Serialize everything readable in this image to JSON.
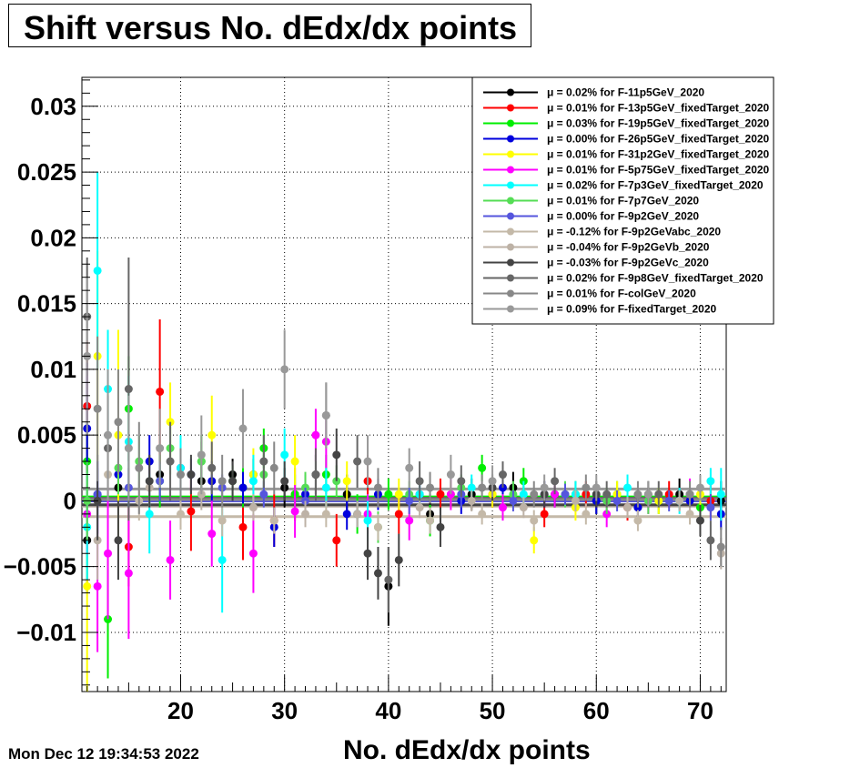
{
  "header": {
    "title": "Shift versus No. dEdx/dx points"
  },
  "footer": {
    "timestamp": "Mon Dec 12 19:34:53 2022"
  },
  "chart_data": {
    "type": "scatter",
    "title": "Shift versus No. dEdx/dx points",
    "xlabel": "No. dEdx/dx points",
    "ylabel": "",
    "xlim": [
      10.5,
      72.5
    ],
    "ylim": [
      -0.0145,
      0.0322
    ],
    "xticks": [
      20,
      30,
      40,
      50,
      60,
      70
    ],
    "xtick_labels": [
      "20",
      "30",
      "40",
      "50",
      "60",
      "70"
    ],
    "yticks": [
      -0.01,
      -0.005,
      0,
      0.005,
      0.01,
      0.015,
      0.02,
      0.025,
      0.03
    ],
    "ytick_labels": [
      "−0.01",
      "−0.005",
      "0",
      "0.005",
      "0.01",
      "0.015",
      "0.02",
      "0.025",
      "0.03"
    ],
    "grid": true,
    "legend_position": "top-right",
    "legend_prefix": "μ =",
    "series": [
      {
        "name": "0.02% for F-11p5GeV_2020",
        "color": "#000000",
        "mean": 0.0002,
        "x": [
          11,
          14,
          18,
          22,
          25,
          27,
          30,
          33,
          36,
          40,
          44,
          48,
          52,
          56,
          60,
          64,
          68,
          72
        ],
        "y": [
          -0.003,
          0.001,
          0.002,
          0.0015,
          0.002,
          0.002,
          0.001,
          0.002,
          0.0005,
          -0.0065,
          -0.001,
          0.0005,
          0.001,
          0.0005,
          0.0,
          -0.0005,
          0.0005,
          0.0
        ],
        "err": [
          0.004,
          0.002,
          0.002,
          0.0015,
          0.0012,
          0.0012,
          0.0015,
          0.0015,
          0.0015,
          0.003,
          0.0015,
          0.0012,
          0.0012,
          0.001,
          0.001,
          0.001,
          0.0012,
          0.0015
        ]
      },
      {
        "name": "0.01% for F-13p5GeV_fixedTarget_2020",
        "color": "#ff0000",
        "mean": 0.0001,
        "x": [
          11,
          15,
          18,
          21,
          26,
          29,
          31,
          35,
          38,
          41,
          45,
          50,
          55,
          59,
          63,
          67,
          71
        ],
        "y": [
          0.0072,
          -0.0035,
          0.0083,
          -0.0008,
          -0.002,
          -0.0015,
          0.0005,
          -0.003,
          0.0015,
          -0.001,
          0.0005,
          0.0005,
          -0.001,
          0.0005,
          -0.0005,
          0.0005,
          0.0
        ],
        "err": [
          0.005,
          0.003,
          0.0055,
          0.003,
          0.0025,
          0.002,
          0.002,
          0.002,
          0.002,
          0.0015,
          0.0012,
          0.001,
          0.001,
          0.001,
          0.001,
          0.001,
          0.0012
        ]
      },
      {
        "name": "0.03% for F-19p5GeV_fixedTarget_2020",
        "color": "#00ee00",
        "mean": 0.0003,
        "x": [
          11,
          13,
          15,
          18,
          22,
          26,
          28,
          31,
          34,
          37,
          40,
          44,
          49,
          53,
          58,
          62,
          66,
          70
        ],
        "y": [
          0.003,
          -0.009,
          0.007,
          0.0015,
          0.003,
          0.001,
          0.004,
          0.0005,
          0.002,
          -0.001,
          0.0005,
          -0.0015,
          0.0025,
          0.0015,
          0.0005,
          0.0005,
          0.0,
          -0.0005
        ],
        "err": [
          0.003,
          0.0045,
          0.004,
          0.002,
          0.002,
          0.0015,
          0.0015,
          0.0015,
          0.0015,
          0.0015,
          0.0012,
          0.0012,
          0.001,
          0.001,
          0.001,
          0.001,
          0.001,
          0.0012
        ]
      },
      {
        "name": "0.00% for F-26p5GeV_fixedTarget_2020",
        "color": "#0000dd",
        "mean": 0.0,
        "x": [
          11,
          12,
          14,
          17,
          20,
          23,
          26,
          29,
          32,
          36,
          39,
          43,
          47,
          51,
          55,
          60,
          64,
          69,
          72
        ],
        "y": [
          0.0055,
          0.0005,
          0.002,
          0.003,
          0.0025,
          0.0015,
          0.001,
          -0.002,
          0.0005,
          -0.001,
          0.0005,
          0.0005,
          0.0,
          0.001,
          0.0005,
          0.0,
          -0.0005,
          0.0,
          -0.001
        ],
        "err": [
          0.005,
          0.003,
          0.002,
          0.002,
          0.0015,
          0.0015,
          0.0012,
          0.0015,
          0.0015,
          0.0012,
          0.0012,
          0.001,
          0.001,
          0.001,
          0.001,
          0.001,
          0.001,
          0.001,
          0.0012
        ]
      },
      {
        "name": "0.01% for F-31p2GeV_fixedTarget_2020",
        "color": "#ffff00",
        "mean": 0.0001,
        "x": [
          11,
          12,
          14,
          19,
          23,
          27,
          31,
          36,
          41,
          46,
          50,
          54,
          58,
          62,
          66,
          70
        ],
        "y": [
          -0.0065,
          0.011,
          0.005,
          0.006,
          0.005,
          0.002,
          0.003,
          0.0015,
          0.0005,
          0.0005,
          0.0005,
          -0.003,
          -0.0005,
          0.0005,
          0.0,
          0.0005
        ],
        "err": [
          0.008,
          0.008,
          0.008,
          0.003,
          0.003,
          0.002,
          0.002,
          0.0015,
          0.0012,
          0.001,
          0.001,
          0.001,
          0.001,
          0.001,
          0.001,
          0.001
        ]
      },
      {
        "name": "0.01% for F-5p75GeV_fixedTarget_2020",
        "color": "#ff00ff",
        "mean": 0.0001,
        "x": [
          11,
          12,
          13,
          15,
          19,
          23,
          27,
          31,
          33,
          34,
          38,
          42,
          46,
          51,
          56,
          61,
          65,
          69
        ],
        "y": [
          -0.001,
          -0.0065,
          -0.004,
          -0.0055,
          -0.0045,
          -0.0025,
          -0.004,
          -0.0008,
          0.005,
          0.0045,
          -0.001,
          -0.0015,
          0.0005,
          -0.0005,
          0.0005,
          -0.001,
          0.0,
          0.0005
        ],
        "err": [
          0.003,
          0.005,
          0.005,
          0.005,
          0.003,
          0.0025,
          0.003,
          0.002,
          0.002,
          0.002,
          0.0015,
          0.0015,
          0.0012,
          0.001,
          0.001,
          0.001,
          0.001,
          0.0012
        ]
      },
      {
        "name": "0.02% for F-7p3GeV_fixedTarget_2020",
        "color": "#00ffff",
        "mean": 0.0002,
        "x": [
          11,
          12,
          13,
          15,
          17,
          20,
          24,
          27,
          30,
          34,
          38,
          43,
          48,
          53,
          58,
          63,
          68,
          71,
          72
        ],
        "y": [
          -0.002,
          0.0175,
          0.0085,
          0.0045,
          -0.001,
          0.0025,
          -0.0045,
          0.0015,
          0.0035,
          0.001,
          -0.0015,
          0.0005,
          0.001,
          0.0005,
          0.0005,
          0.001,
          0.0,
          0.0015,
          0.0005
        ],
        "err": [
          0.004,
          0.0075,
          0.0045,
          0.005,
          0.003,
          0.0025,
          0.004,
          0.002,
          0.002,
          0.0015,
          0.0015,
          0.0012,
          0.001,
          0.001,
          0.001,
          0.001,
          0.001,
          0.001,
          0.002
        ]
      },
      {
        "name": "0.01% for F-7p7GeV_2020",
        "color": "#55dd55",
        "mean": 0.0001,
        "x": [
          11,
          14,
          16,
          19,
          22,
          25,
          28,
          32,
          35,
          39,
          42,
          47,
          52,
          57,
          61,
          65,
          69
        ],
        "y": [
          0.0,
          0.0025,
          0.003,
          0.004,
          0.003,
          0.0015,
          0.002,
          0.001,
          0.0015,
          -0.002,
          0.0005,
          0.001,
          0.0005,
          0.0005,
          0.0,
          0.0,
          0.0005
        ],
        "err": [
          0.003,
          0.002,
          0.002,
          0.002,
          0.0015,
          0.0012,
          0.0015,
          0.0012,
          0.0012,
          0.0012,
          0.001,
          0.001,
          0.001,
          0.001,
          0.001,
          0.001,
          0.001
        ]
      },
      {
        "name": "0.00% for F-9p2GeV_2020",
        "color": "#5555dd",
        "mean": 0.0,
        "x": [
          12,
          15,
          18,
          21,
          24,
          28,
          32,
          37,
          42,
          47,
          52,
          57,
          62,
          67,
          71
        ],
        "y": [
          0.0005,
          0.001,
          0.0015,
          0.002,
          0.001,
          0.0005,
          0.0,
          -0.001,
          0.0,
          0.0005,
          0.0,
          0.0005,
          0.0,
          0.0,
          -0.0005
        ],
        "err": [
          0.002,
          0.0015,
          0.0015,
          0.0012,
          0.001,
          0.001,
          0.001,
          0.001,
          0.001,
          0.001,
          0.0008,
          0.0008,
          0.0008,
          0.0008,
          0.001
        ]
      },
      {
        "name": "-0.12% for F-9p2GeVabc_2020",
        "color": "#c4b9a8",
        "mean": -0.0012,
        "x": [
          13,
          16,
          20,
          24,
          29,
          34,
          39,
          44,
          49,
          54,
          59,
          64,
          69
        ],
        "y": [
          0.002,
          0.0,
          -0.001,
          -0.0015,
          -0.0015,
          -0.001,
          -0.002,
          -0.0015,
          -0.001,
          -0.0015,
          -0.001,
          -0.0015,
          -0.001
        ],
        "err": [
          0.002,
          0.0015,
          0.0012,
          0.0012,
          0.001,
          0.001,
          0.001,
          0.001,
          0.0008,
          0.0008,
          0.0008,
          0.0008,
          0.0008
        ]
      },
      {
        "name": "-0.04% for F-9p2GeVb_2020",
        "color": "#bdb2a6",
        "mean": -0.0004,
        "x": [
          12,
          17,
          22,
          27,
          32,
          37,
          43,
          48,
          53,
          58,
          63,
          68,
          72
        ],
        "y": [
          -0.003,
          0.001,
          0.0005,
          -0.0005,
          -0.001,
          -0.001,
          -0.0005,
          0.0,
          -0.0005,
          0.0,
          -0.0005,
          0.0,
          -0.004
        ],
        "err": [
          0.003,
          0.0015,
          0.0012,
          0.001,
          0.001,
          0.001,
          0.0008,
          0.0008,
          0.0008,
          0.0008,
          0.0008,
          0.0008,
          0.0012
        ]
      },
      {
        "name": "-0.03% for F-9p2GeVc_2020",
        "color": "#444444",
        "mean": -0.0003,
        "x": [
          12,
          14,
          17,
          21,
          25,
          30,
          35,
          38,
          39,
          41,
          45,
          50,
          55,
          60,
          65,
          70
        ],
        "y": [
          0.0,
          -0.003,
          0.0015,
          0.002,
          0.0015,
          0.0015,
          0.0035,
          -0.004,
          -0.0055,
          -0.0045,
          -0.002,
          0.001,
          0.0005,
          0.0005,
          0.0005,
          -0.0015
        ],
        "err": [
          0.003,
          0.003,
          0.002,
          0.0015,
          0.0015,
          0.0015,
          0.002,
          0.002,
          0.002,
          0.002,
          0.0015,
          0.001,
          0.001,
          0.001,
          0.001,
          0.0012
        ]
      },
      {
        "name": "0.02% for F-9p8GeV_fixedTarget_2020",
        "color": "#666666",
        "mean": 0.0002,
        "x": [
          11,
          13,
          15,
          19,
          23,
          28,
          33,
          37,
          40,
          43,
          47,
          51,
          56,
          61,
          66,
          71
        ],
        "y": [
          0.014,
          0.004,
          0.0085,
          0.003,
          0.0025,
          0.003,
          0.002,
          0.003,
          -0.006,
          0.0015,
          0.0015,
          0.002,
          0.0015,
          0.0005,
          0.0005,
          -0.003
        ],
        "err": [
          0.0045,
          0.004,
          0.01,
          0.003,
          0.002,
          0.002,
          0.002,
          0.002,
          0.0025,
          0.0015,
          0.0012,
          0.001,
          0.001,
          0.001,
          0.001,
          0.0015
        ]
      },
      {
        "name": "0.01% for F-colGeV_2020",
        "color": "#888888",
        "mean": 0.0001,
        "x": [
          12,
          14,
          16,
          20,
          24,
          29,
          34,
          39,
          44,
          49,
          54,
          59,
          64,
          69,
          72
        ],
        "y": [
          0.007,
          0.006,
          0.0025,
          0.002,
          0.0015,
          0.0025,
          0.0065,
          0.001,
          0.001,
          0.001,
          0.0005,
          0.001,
          0.0005,
          0.0005,
          -0.0035
        ],
        "err": [
          0.0055,
          0.004,
          0.0035,
          0.002,
          0.002,
          0.002,
          0.0025,
          0.0015,
          0.0012,
          0.001,
          0.001,
          0.001,
          0.001,
          0.001,
          0.0015
        ]
      },
      {
        "name": "0.09% for F-fixedTarget_2020",
        "color": "#999999",
        "mean": 0.0009,
        "x": [
          11,
          13,
          15,
          18,
          22,
          26,
          30,
          34,
          38,
          42,
          46,
          50,
          55,
          60,
          65,
          70
        ],
        "y": [
          0.011,
          0.005,
          0.004,
          0.004,
          0.0035,
          0.0055,
          0.01,
          0.0065,
          0.003,
          0.0025,
          0.002,
          0.0015,
          0.001,
          0.001,
          0.0005,
          0.001
        ],
        "err": [
          0.006,
          0.005,
          0.004,
          0.003,
          0.003,
          0.003,
          0.003,
          0.0025,
          0.002,
          0.0015,
          0.0015,
          0.0012,
          0.001,
          0.001,
          0.001,
          0.001
        ]
      }
    ]
  }
}
